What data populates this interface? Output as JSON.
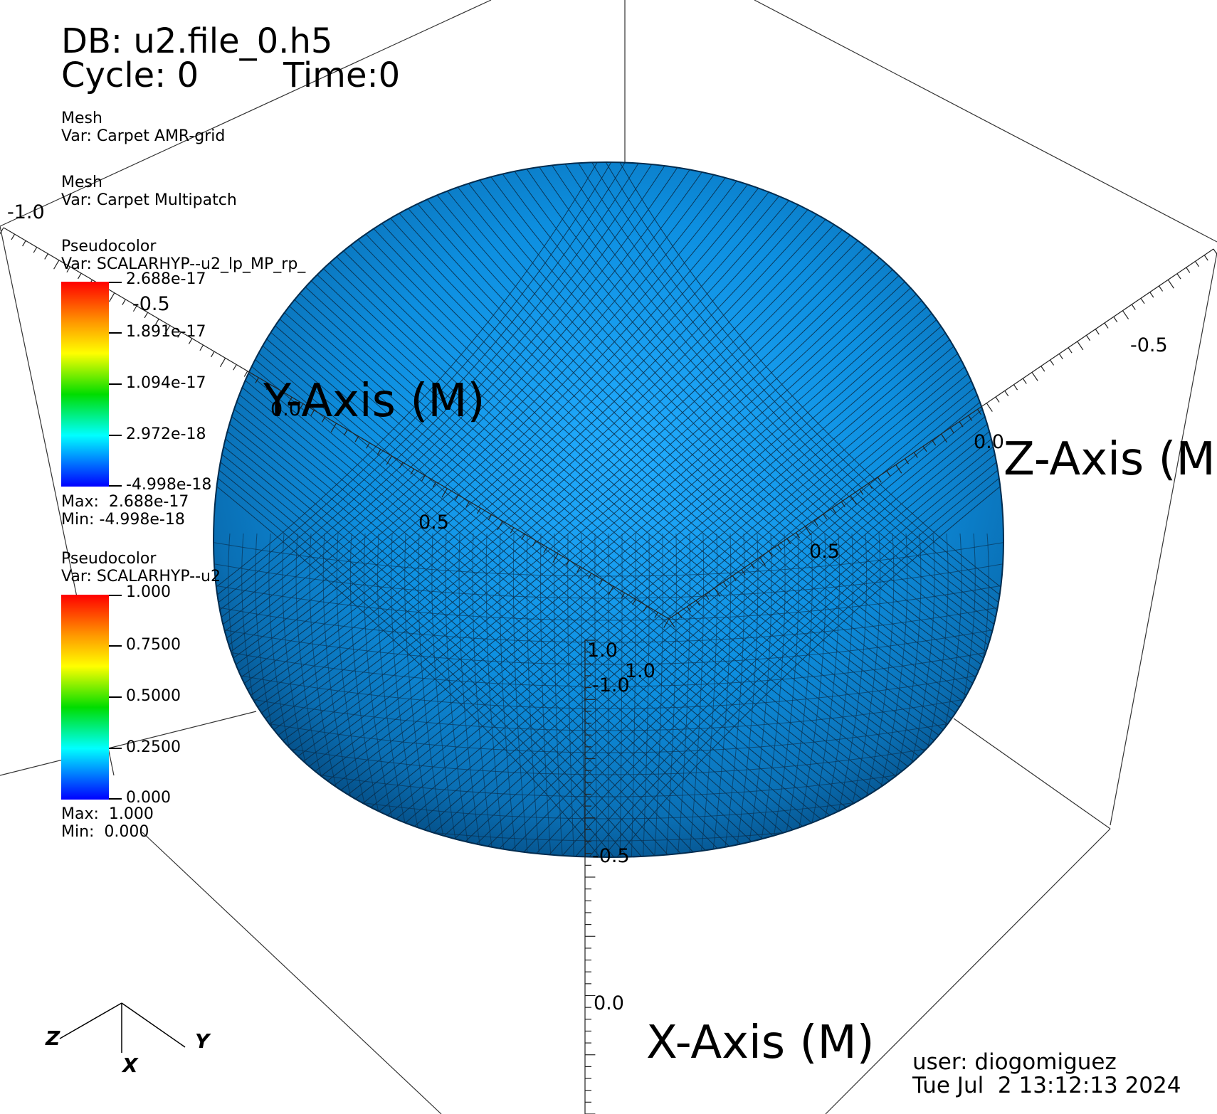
{
  "header": {
    "db": "DB: u2.file_0.h5",
    "cycle": "Cycle: 0",
    "time": "Time:0"
  },
  "plots": [
    {
      "type": "Mesh",
      "var": "Var: Carpet AMR-grid"
    },
    {
      "type": "Mesh",
      "var": "Var: Carpet Multipatch"
    }
  ],
  "legends": [
    {
      "type": "Pseudocolor",
      "var": "Var: SCALARHYP--u2_lp_MP_rp_",
      "ticks": [
        "2.688e-17",
        "1.891e-17",
        "1.094e-17",
        "2.972e-18",
        "-4.998e-18"
      ],
      "max": "Max:  2.688e-17",
      "min": "Min: -4.998e-18"
    },
    {
      "type": "Pseudocolor",
      "var": "Var: SCALARHYP--u2",
      "ticks": [
        "1.000",
        "0.7500",
        "0.5000",
        "0.2500",
        "0.000"
      ],
      "max": "Max:  1.000",
      "min": "Min:  0.000"
    }
  ],
  "axes": {
    "x_title": "X-Axis (M)",
    "y_title": "Y-Axis (M)",
    "z_title": "Z-Axis (M",
    "ticks": [
      {
        "id": "y-neg1",
        "label": "-1.0"
      },
      {
        "id": "y-neg05",
        "label": "-0.5"
      },
      {
        "id": "y-0",
        "label": "0.0"
      },
      {
        "id": "y-05",
        "label": "0.5"
      },
      {
        "id": "y-1",
        "label": "1.0"
      },
      {
        "id": "z-neg05",
        "label": "-0.5"
      },
      {
        "id": "z-0",
        "label": "0.0"
      },
      {
        "id": "z-05",
        "label": "0.5"
      },
      {
        "id": "z-1",
        "label": "1.0"
      },
      {
        "id": "x-neg1",
        "label": "-1.0"
      },
      {
        "id": "x-neg05",
        "label": "-0.5"
      },
      {
        "id": "x-0",
        "label": "0.0"
      }
    ]
  },
  "triad": {
    "x": "X",
    "y": "Y",
    "z": "Z"
  },
  "footer": {
    "user": "user: diogomiguez",
    "date": "Tue Jul  2 13:12:13 2024"
  },
  "colors": {
    "sphere_light": "#1aa3f5",
    "sphere_mid": "#0b86d6",
    "sphere_dark": "#04508a",
    "mesh_lines": "#0a2a44"
  }
}
